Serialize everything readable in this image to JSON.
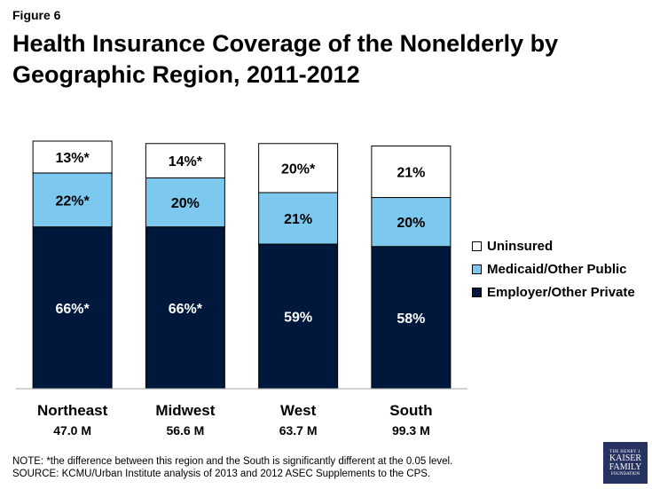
{
  "figure_label": "Figure 6",
  "title": "Health Insurance Coverage of the Nonelderly by Geographic Region, 2011-2012",
  "colors": {
    "uninsured": "#ffffff",
    "medicaid": "#7dc8ee",
    "employer": "#00183b",
    "outline": "#000000"
  },
  "chart_data": {
    "type": "bar",
    "stacked": true,
    "categories": [
      "Northeast",
      "Midwest",
      "West",
      "South"
    ],
    "sublabels": [
      "47.0 M",
      "56.6 M",
      "63.7 M",
      "99.3 M"
    ],
    "series": [
      {
        "name": "Employer/Other Private",
        "values": [
          66,
          66,
          59,
          58
        ],
        "labels": [
          "66%*",
          "66%*",
          "59%",
          "58%"
        ],
        "color": "#00183b",
        "label_color": "#ffffff"
      },
      {
        "name": "Medicaid/Other Public",
        "values": [
          22,
          20,
          21,
          20
        ],
        "labels": [
          "22%*",
          "20%",
          "21%",
          "20%"
        ],
        "color": "#7dc8ee",
        "label_color": "#000000"
      },
      {
        "name": "Uninsured",
        "values": [
          13,
          14,
          20,
          21
        ],
        "labels": [
          "13%*",
          "14%*",
          "20%*",
          "21%"
        ],
        "color": "#ffffff",
        "label_color": "#000000"
      }
    ],
    "ylim": [
      0,
      101
    ],
    "legend_position": "right"
  },
  "legend": [
    {
      "label": "Uninsured",
      "color": "#ffffff"
    },
    {
      "label": "Medicaid/Other Public",
      "color": "#7dc8ee"
    },
    {
      "label": "Employer/Other Private",
      "color": "#00183b"
    }
  ],
  "note_line1": "NOTE: *the difference between this region and the South is significantly different at the 0.05 level.",
  "note_line2": "SOURCE: KCMU/Urban Institute analysis of 2013 and 2012 ASEC Supplements to the CPS.",
  "logo": {
    "line1": "THE HENRY J.",
    "line2": "KAISER",
    "line3": "FAMILY",
    "line4": "FOUNDATION"
  }
}
